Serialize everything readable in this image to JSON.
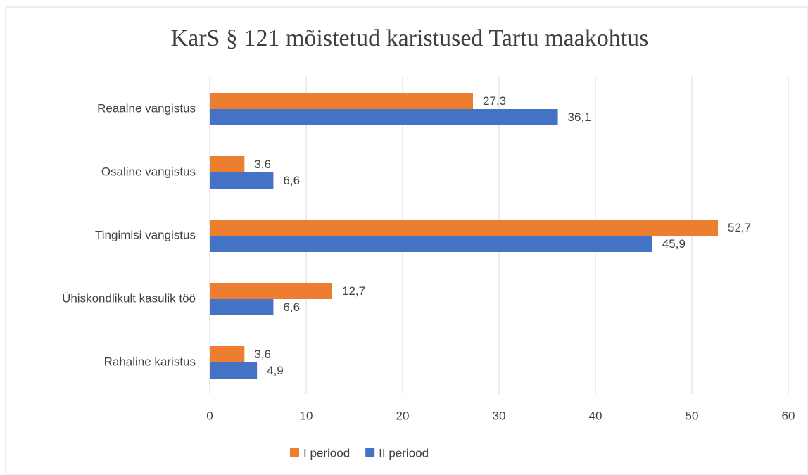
{
  "chart_data": {
    "type": "hbar",
    "title": "KarS § 121 mõistetud karistused Tartu maakohtus",
    "categories": [
      "Reaalne vangistus",
      "Osaline vangistus",
      "Tingimisi vangistus",
      "Ühiskondlikult kasulik töö",
      "Rahaline karistus"
    ],
    "series": [
      {
        "name": "I periood",
        "color": "#ed7d31",
        "values": [
          27.3,
          3.6,
          52.7,
          12.7,
          3.6
        ],
        "value_labels": [
          "27,3",
          "3,6",
          "52,7",
          "12,7",
          "3,6"
        ]
      },
      {
        "name": "II periood",
        "color": "#4472c4",
        "values": [
          36.1,
          6.6,
          45.9,
          6.6,
          4.9
        ],
        "value_labels": [
          "36,1",
          "6,6",
          "45,9",
          "6,6",
          "4,9"
        ]
      }
    ],
    "xlim": [
      0,
      60
    ],
    "xticks": [
      0,
      10,
      20,
      30,
      40,
      50,
      60
    ],
    "grid": true,
    "legend": "bottom"
  }
}
